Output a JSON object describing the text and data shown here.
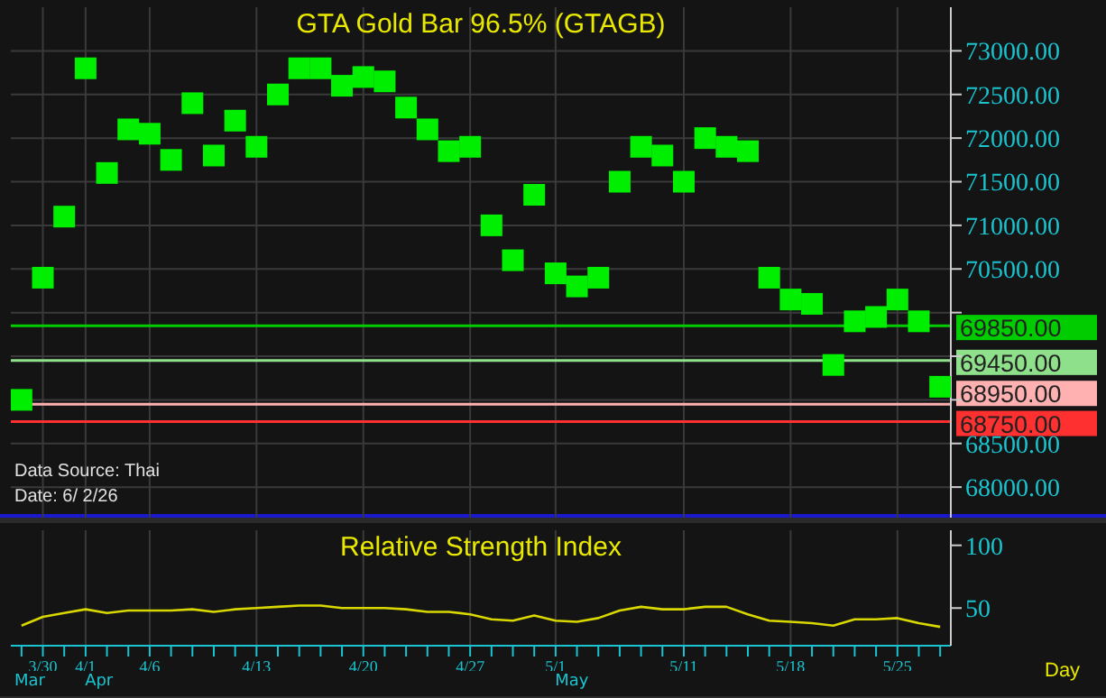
{
  "chart_data": [
    {
      "type": "scatter",
      "title": "GTA Gold Bar 96.5% (GTAGB)",
      "categories": [
        null,
        null,
        null,
        null,
        null,
        null,
        null,
        null,
        null,
        null,
        null,
        null,
        null,
        null,
        null,
        null,
        null,
        null,
        null,
        null,
        null,
        null,
        null,
        null,
        null,
        null,
        null,
        null,
        null,
        null,
        null,
        null,
        null,
        null,
        null,
        null,
        null,
        null,
        null,
        null,
        null,
        null,
        null,
        null
      ],
      "series": [
        {
          "color": "#00ee00",
          "values": [
            69000,
            70400,
            71100,
            72800,
            71600,
            72100,
            72050,
            71750,
            72400,
            71800,
            72200,
            71900,
            72500,
            72800,
            72800,
            72600,
            72700,
            72650,
            72350,
            72100,
            71850,
            71900,
            71000,
            70600,
            71350,
            70450,
            70300,
            70400,
            71500,
            71900,
            71800,
            71500,
            72000,
            71900,
            71850,
            70400,
            70150,
            70100,
            69400,
            69900,
            69950,
            70150,
            69900,
            69150
          ]
        }
      ],
      "marker": "square",
      "ylim": [
        67650,
        73500
      ],
      "yticks": [
        {
          "value": 68000,
          "label": "68000.00"
        },
        {
          "value": 68500,
          "label": "68500.00"
        },
        {
          "value": 69000,
          "label": null
        },
        {
          "value": 69500,
          "label": null
        },
        {
          "value": 70000,
          "label": null
        },
        {
          "value": 70500,
          "label": "70500.00"
        },
        {
          "value": 71000,
          "label": "71000.00"
        },
        {
          "value": 71500,
          "label": "71500.00"
        },
        {
          "value": 72000,
          "label": "72000.00"
        },
        {
          "value": 72500,
          "label": "72500.00"
        },
        {
          "value": 73000,
          "label": "73000.00"
        }
      ],
      "ref_lines": [
        {
          "axis": "y",
          "value": 69850,
          "label": "69850.00",
          "color": "#00cc00"
        },
        {
          "axis": "y",
          "value": 69450,
          "label": "69450.00",
          "color": "#8fe08a"
        },
        {
          "axis": "y",
          "value": 68950,
          "label": "68950.00",
          "color": "#ffb0b0"
        },
        {
          "axis": "y",
          "value": 68750,
          "label": "68750.00",
          "color": "#ff3030"
        }
      ],
      "annotations": [
        "Data Source: Thai",
        "Date: 6/ 2/26"
      ],
      "grid": true,
      "tick_labels": "y",
      "legend": false
    },
    {
      "type": "line",
      "title": "Relative Strength Index",
      "xlabel": "Day",
      "categories": [
        null,
        "3/30",
        null,
        "4/1",
        null,
        null,
        "4/6",
        null,
        null,
        null,
        null,
        "4/13",
        null,
        null,
        null,
        null,
        "4/20",
        null,
        null,
        null,
        null,
        "4/27",
        null,
        null,
        null,
        "5/1",
        null,
        null,
        null,
        null,
        null,
        "5/11",
        null,
        null,
        null,
        null,
        "5/18",
        null,
        null,
        null,
        null,
        "5/25",
        null,
        null
      ],
      "series": [
        {
          "color": "#d8d800",
          "values": [
            36,
            43,
            46,
            49,
            46,
            48,
            48,
            48,
            49,
            47,
            49,
            50,
            51,
            52,
            52,
            50,
            50,
            50,
            49,
            47,
            47,
            45,
            41,
            40,
            44,
            40,
            39,
            42,
            48,
            51,
            49,
            49,
            51,
            51,
            45,
            40,
            39,
            38,
            36,
            41,
            41,
            42,
            38,
            35
          ]
        }
      ],
      "ylim": [
        20,
        112
      ],
      "yticks": [
        50,
        100
      ],
      "marker": "none",
      "line_style": "solid",
      "annotations": [
        "Mar",
        "Apr",
        "May"
      ],
      "grid": "x",
      "legend": false
    }
  ]
}
